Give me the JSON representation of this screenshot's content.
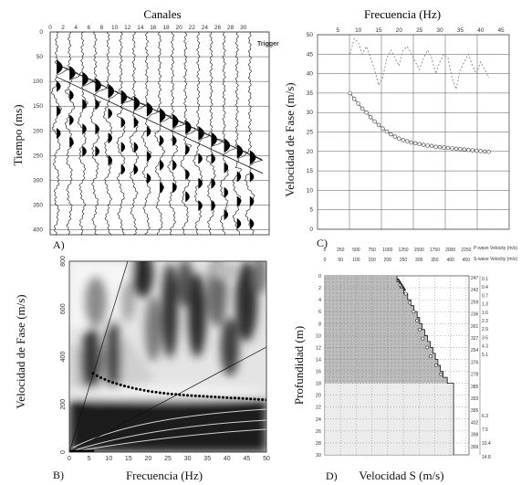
{
  "chart_data": [
    {
      "panel": "A)",
      "type": "seismogram",
      "title": "Canales",
      "ylabel": "Tiempo (ms)",
      "x_ticks": [
        "0",
        "2",
        "4",
        "6",
        "8",
        "10",
        "12",
        "14",
        "16",
        "18",
        "20",
        "22",
        "24",
        "26",
        "28",
        "30"
      ],
      "y_ticks": [
        "0",
        "50",
        "100",
        "150",
        "200",
        "250",
        "300",
        "350",
        "400"
      ],
      "xlim": [
        0,
        34
      ],
      "ylim": [
        0,
        410
      ],
      "trigger_label": "Trigger",
      "first_arrival": {
        "channel": [
          1,
          33
        ],
        "time_ms": [
          65,
          260
        ]
      }
    },
    {
      "panel": "B)",
      "type": "heatmap",
      "xlabel": "Frecuencia (Hz)",
      "ylabel": "Velocidad de Fase (m/s)",
      "x_ticks": [
        "0",
        "5",
        "10",
        "15",
        "20",
        "25",
        "30",
        "35",
        "40",
        "45",
        "50"
      ],
      "y_ticks": [
        "0",
        "200",
        "400",
        "600",
        "800"
      ],
      "xlim": [
        0,
        50
      ],
      "ylim": [
        0,
        800
      ],
      "picked_curve": {
        "x": [
          6,
          7,
          8,
          9,
          10,
          11,
          12,
          13,
          14,
          15,
          16,
          17,
          18,
          19,
          20,
          21,
          22,
          23,
          24,
          25,
          26,
          27,
          28,
          29,
          30,
          31,
          32,
          33,
          34,
          35,
          36,
          37,
          38,
          39,
          40,
          41,
          42,
          43,
          44,
          45,
          46,
          47,
          48,
          49,
          50
        ],
        "y": [
          330,
          320,
          312,
          305,
          298,
          292,
          287,
          282,
          277,
          273,
          269,
          265,
          262,
          259,
          256,
          253,
          251,
          249,
          247,
          245,
          243,
          242,
          240,
          239,
          238,
          237,
          236,
          235,
          234,
          233,
          232,
          231,
          230,
          229,
          228,
          227,
          227,
          226,
          225,
          224,
          223,
          222,
          221,
          220,
          219
        ]
      }
    },
    {
      "panel": "C)",
      "type": "line",
      "title": "Frecuencia (Hz)",
      "ylabel": "Velocidad de Fase (m/s)",
      "x_ticks": [
        "5",
        "10",
        "15",
        "20",
        "25",
        "30",
        "35",
        "40",
        "45"
      ],
      "y_ticks": [
        "0",
        "5",
        "10",
        "15",
        "20",
        "25",
        "30",
        "35",
        "40",
        "45",
        "50"
      ],
      "xlim": [
        0,
        47
      ],
      "ylim": [
        0,
        50
      ],
      "series": [
        {
          "style": "dashed",
          "x": [
            8,
            9,
            10,
            11,
            12,
            13,
            14,
            15,
            16,
            17,
            18,
            19,
            20,
            21,
            22,
            23,
            24,
            25,
            26,
            27,
            28,
            29,
            30,
            31,
            32,
            33,
            34,
            35,
            36,
            37,
            38,
            39,
            40,
            41,
            42
          ],
          "y": [
            45,
            49,
            48,
            45,
            47,
            44,
            41,
            37,
            39,
            44,
            46,
            44,
            42,
            46,
            47,
            45,
            43,
            41,
            44,
            46,
            44,
            40,
            43,
            45,
            44,
            39,
            36,
            41,
            43,
            45,
            42,
            40,
            43,
            41,
            39
          ]
        },
        {
          "style": "markers",
          "x": [
            8,
            9,
            10,
            11,
            12,
            13,
            14,
            15,
            16,
            17,
            18,
            19,
            20,
            21,
            22,
            23,
            24,
            25,
            26,
            27,
            28,
            29,
            30,
            31,
            32,
            33,
            34,
            35,
            36,
            37,
            38,
            39,
            40,
            41,
            42
          ],
          "y": [
            35,
            33.5,
            32.3,
            31,
            30,
            28.8,
            27.7,
            26.8,
            25.9,
            25.1,
            24.4,
            23.8,
            23.3,
            22.9,
            22.6,
            22.3,
            22.1,
            21.9,
            21.7,
            21.5,
            21.4,
            21.2,
            21.1,
            21.0,
            20.9,
            20.8,
            20.7,
            20.6,
            20.5,
            20.4,
            20.3,
            20.2,
            20.1,
            20.0,
            19.9
          ]
        }
      ]
    },
    {
      "panel": "D)",
      "type": "profile",
      "xlabel": "Velocidad S (m/s)",
      "ylabel": "Profundidad (m)",
      "p_axis_label": "P-wave Velocity (m/s)",
      "s_axis_label": "S-wave Velocity (m/s)",
      "p_ticks": [
        "0",
        "250",
        "500",
        "750",
        "1000",
        "1250",
        "1500",
        "1750",
        "2000",
        "2250"
      ],
      "s_ticks": [
        "0",
        "50",
        "100",
        "150",
        "200",
        "250",
        "300",
        "350",
        "400",
        "450"
      ],
      "y_ticks": [
        "0",
        "2",
        "4",
        "6",
        "8",
        "10",
        "12",
        "14",
        "16",
        "18",
        "20",
        "22",
        "24",
        "26",
        "28",
        "30"
      ],
      "ylim": [
        0,
        30
      ],
      "vs_profile": {
        "depth": [
          0,
          1,
          2,
          3,
          4,
          5,
          6,
          7,
          8,
          9,
          10,
          11,
          12,
          13,
          14,
          15,
          16,
          17
        ],
        "vs": [
          230,
          240,
          252,
          264,
          274,
          284,
          294,
          302,
          310,
          318,
          327,
          336,
          344,
          352,
          360,
          368,
          377,
          390
        ]
      },
      "vs_points": {
        "depth": [
          1.5,
          3,
          4.5,
          6,
          7.5,
          9,
          10.5,
          12,
          13.5,
          15,
          16.5
        ],
        "vs": [
          240,
          258,
          270,
          283,
          294,
          302,
          312,
          326,
          337,
          355,
          370
        ]
      },
      "right_labels": [
        "247",
        "242",
        "259",
        "236",
        "261",
        "327",
        "254",
        "376",
        "278",
        "385",
        "393",
        "395",
        "402",
        "398",
        "399"
      ],
      "right_values": [
        "0.1",
        "0.4",
        "0.7",
        "1.3",
        "1.6",
        "2.3",
        "2.9",
        "3.5",
        "4.3",
        "5.1",
        "6.3",
        "7.5",
        "10.4",
        "14.8"
      ]
    }
  ],
  "page": {
    "label_a": "A)",
    "label_b": "B)",
    "label_c": "C)",
    "label_d": "D)"
  }
}
